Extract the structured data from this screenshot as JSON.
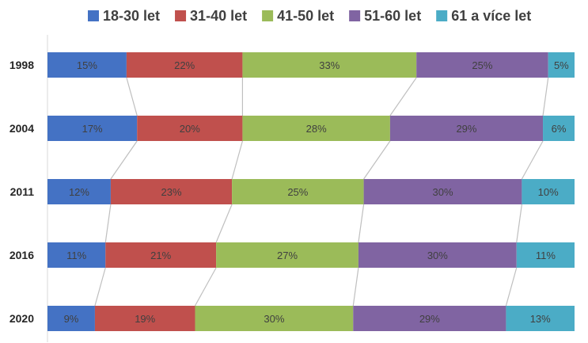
{
  "chart_data": {
    "type": "bar",
    "orientation": "horizontal",
    "stacked": "percent",
    "categories": [
      "1998",
      "2004",
      "2011",
      "2016",
      "2020"
    ],
    "series": [
      {
        "name": "18-30 let",
        "color": "#4472C4",
        "values": [
          15,
          17,
          12,
          11,
          9
        ],
        "labels": [
          "15%",
          "17%",
          "12%",
          "11%",
          "9%"
        ]
      },
      {
        "name": "31-40 let",
        "color": "#C0504D",
        "values": [
          22,
          20,
          23,
          21,
          19
        ],
        "labels": [
          "22%",
          "20%",
          "23%",
          "21%",
          "19%"
        ]
      },
      {
        "name": "41-50 let",
        "color": "#9BBB59",
        "values": [
          33,
          28,
          25,
          27,
          30
        ],
        "labels": [
          "33%",
          "28%",
          "25%",
          "27%",
          "30%"
        ]
      },
      {
        "name": "51-60 let",
        "color": "#8064A2",
        "values": [
          25,
          29,
          30,
          30,
          29
        ],
        "labels": [
          "25%",
          "29%",
          "30%",
          "30%",
          "29%"
        ]
      },
      {
        "name": "61 a více let",
        "color": "#4BACC6",
        "values": [
          5,
          6,
          10,
          11,
          13
        ],
        "labels": [
          "5%",
          "6%",
          "10%",
          "11%",
          "13%"
        ]
      }
    ],
    "legend_position": "top",
    "series_lines": true,
    "grid": false
  }
}
